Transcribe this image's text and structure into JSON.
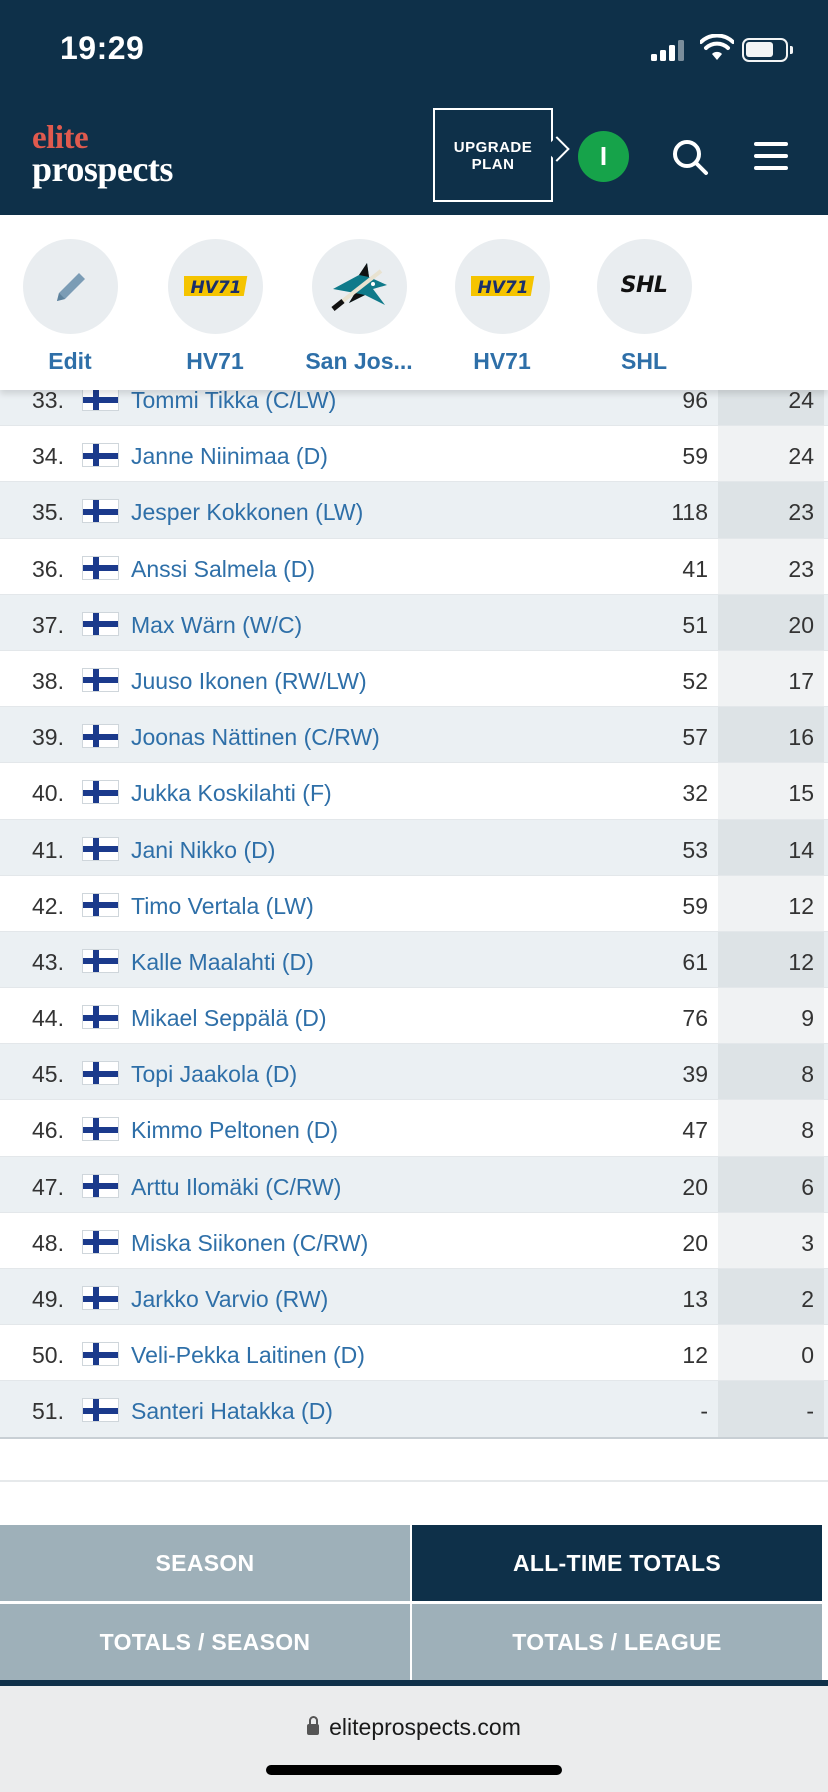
{
  "status": {
    "time": "19:29"
  },
  "header": {
    "logo_top": "elite",
    "logo_bottom": "prospects",
    "upgrade_line1": "UPGRADE",
    "upgrade_line2": "PLAN",
    "avatar_initial": "I"
  },
  "shortcuts": [
    {
      "label": "Edit",
      "icon": "pencil-icon"
    },
    {
      "label": "HV71",
      "icon": "hv71-logo"
    },
    {
      "label": "San Jos...",
      "icon": "san-jose-sharks-logo"
    },
    {
      "label": "HV71",
      "icon": "hv71-logo"
    },
    {
      "label": "SHL",
      "icon": "shl-logo",
      "logo_text": "SHL"
    }
  ],
  "logo_text": {
    "hv71": "HV71"
  },
  "players": [
    {
      "rank": "33.",
      "name": "Tommi Tikka (C/LW)",
      "gp": "96",
      "pts": "24"
    },
    {
      "rank": "34.",
      "name": "Janne Niinimaa (D)",
      "gp": "59",
      "pts": "24"
    },
    {
      "rank": "35.",
      "name": "Jesper Kokkonen (LW)",
      "gp": "118",
      "pts": "23"
    },
    {
      "rank": "36.",
      "name": "Anssi Salmela (D)",
      "gp": "41",
      "pts": "23"
    },
    {
      "rank": "37.",
      "name": "Max Wärn (W/C)",
      "gp": "51",
      "pts": "20"
    },
    {
      "rank": "38.",
      "name": "Juuso Ikonen (RW/LW)",
      "gp": "52",
      "pts": "17"
    },
    {
      "rank": "39.",
      "name": "Joonas Nättinen (C/RW)",
      "gp": "57",
      "pts": "16"
    },
    {
      "rank": "40.",
      "name": "Jukka Koskilahti (F)",
      "gp": "32",
      "pts": "15"
    },
    {
      "rank": "41.",
      "name": "Jani Nikko (D)",
      "gp": "53",
      "pts": "14"
    },
    {
      "rank": "42.",
      "name": "Timo Vertala (LW)",
      "gp": "59",
      "pts": "12"
    },
    {
      "rank": "43.",
      "name": "Kalle Maalahti (D)",
      "gp": "61",
      "pts": "12"
    },
    {
      "rank": "44.",
      "name": "Mikael Seppälä (D)",
      "gp": "76",
      "pts": "9"
    },
    {
      "rank": "45.",
      "name": "Topi Jaakola (D)",
      "gp": "39",
      "pts": "8"
    },
    {
      "rank": "46.",
      "name": "Kimmo Peltonen (D)",
      "gp": "47",
      "pts": "8"
    },
    {
      "rank": "47.",
      "name": "Arttu Ilomäki (C/RW)",
      "gp": "20",
      "pts": "6"
    },
    {
      "rank": "48.",
      "name": "Miska Siikonen (C/RW)",
      "gp": "20",
      "pts": "3"
    },
    {
      "rank": "49.",
      "name": "Jarkko Varvio (RW)",
      "gp": "13",
      "pts": "2"
    },
    {
      "rank": "50.",
      "name": "Veli-Pekka Laitinen (D)",
      "gp": "12",
      "pts": "0"
    },
    {
      "rank": "51.",
      "name": "Santeri Hatakka (D)",
      "gp": "-",
      "pts": "-"
    }
  ],
  "tabs": {
    "season": "SEASON",
    "all_time": "ALL-TIME TOTALS",
    "totals_season": "TOTALS / SEASON",
    "totals_league": "TOTALS / LEAGUE",
    "active": "all_time"
  },
  "browser": {
    "url": "eliteprospects.com"
  },
  "colors": {
    "header_bg": "#0e3049",
    "logo_accent": "#e05a4e",
    "link_blue": "#2e6fa8",
    "avatar_green": "#16a34a",
    "tab_inactive": "#9eb0b9"
  }
}
